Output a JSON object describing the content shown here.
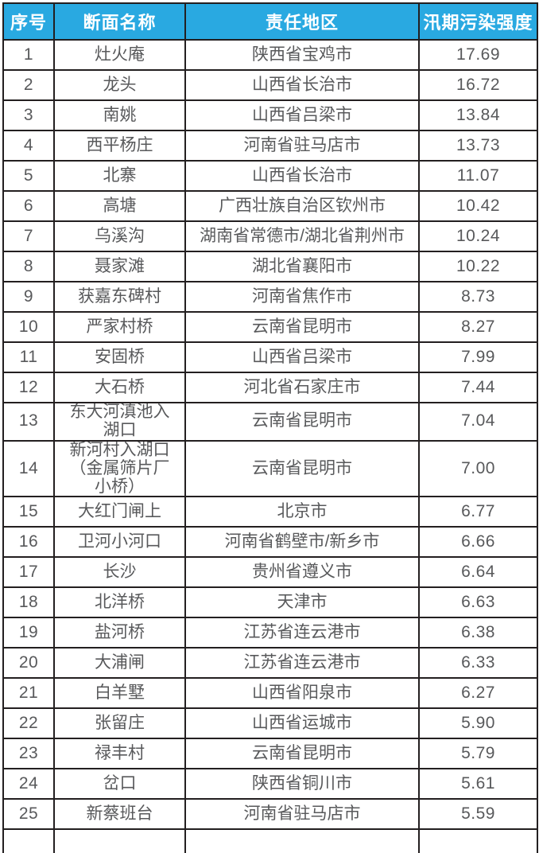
{
  "colors": {
    "header_bg": "#29a9e1",
    "header_text": "#ffffff",
    "body_text": "#58595b",
    "border": "#231f20"
  },
  "table": {
    "headers": {
      "no": "序号",
      "name": "断面名称",
      "region": "责任地区",
      "value": "汛期污染强度"
    },
    "rows": [
      {
        "no": "1",
        "name": "灶火庵",
        "region": "陕西省宝鸡市",
        "value": "17.69"
      },
      {
        "no": "2",
        "name": "龙头",
        "region": "山西省长治市",
        "value": "16.72"
      },
      {
        "no": "3",
        "name": "南姚",
        "region": "山西省吕梁市",
        "value": "13.84"
      },
      {
        "no": "4",
        "name": "西平杨庄",
        "region": "河南省驻马店市",
        "value": "13.73"
      },
      {
        "no": "5",
        "name": "北寨",
        "region": "山西省长治市",
        "value": "11.07"
      },
      {
        "no": "6",
        "name": "高塘",
        "region": "广西壮族自治区钦州市",
        "value": "10.42"
      },
      {
        "no": "7",
        "name": "乌溪沟",
        "region": "湖南省常德市/湖北省荆州市",
        "value": "10.24"
      },
      {
        "no": "8",
        "name": "聂家滩",
        "region": "湖北省襄阳市",
        "value": "10.22"
      },
      {
        "no": "9",
        "name": "获嘉东碑村",
        "region": "河南省焦作市",
        "value": "8.73"
      },
      {
        "no": "10",
        "name": "严家村桥",
        "region": "云南省昆明市",
        "value": "8.27"
      },
      {
        "no": "11",
        "name": "安固桥",
        "region": "山西省吕梁市",
        "value": "7.99"
      },
      {
        "no": "12",
        "name": "大石桥",
        "region": "河北省石家庄市",
        "value": "7.44"
      },
      {
        "no": "13",
        "name": "东大河滇池入\n湖口",
        "region": "云南省昆明市",
        "value": "7.04"
      },
      {
        "no": "14",
        "name": "新河村入湖口\n（金属筛片厂\n小桥）",
        "region": "云南省昆明市",
        "value": "7.00"
      },
      {
        "no": "15",
        "name": "大红门闸上",
        "region": "北京市",
        "value": "6.77"
      },
      {
        "no": "16",
        "name": "卫河小河口",
        "region": "河南省鹤壁市/新乡市",
        "value": "6.66"
      },
      {
        "no": "17",
        "name": "长沙",
        "region": "贵州省遵义市",
        "value": "6.64"
      },
      {
        "no": "18",
        "name": "北洋桥",
        "region": "天津市",
        "value": "6.63"
      },
      {
        "no": "19",
        "name": "盐河桥",
        "region": "江苏省连云港市",
        "value": "6.38"
      },
      {
        "no": "20",
        "name": "大浦闸",
        "region": "江苏省连云港市",
        "value": "6.33"
      },
      {
        "no": "21",
        "name": "白羊墅",
        "region": "山西省阳泉市",
        "value": "6.27"
      },
      {
        "no": "22",
        "name": "张留庄",
        "region": "山西省运城市",
        "value": "5.90"
      },
      {
        "no": "23",
        "name": "禄丰村",
        "region": "云南省昆明市",
        "value": "5.79"
      },
      {
        "no": "24",
        "name": "岔口",
        "region": "陕西省铜川市",
        "value": "5.61"
      },
      {
        "no": "25",
        "name": "新蔡班台",
        "region": "河南省驻马店市",
        "value": "5.59"
      },
      {
        "no": "",
        "name": "",
        "region": "",
        "value": ""
      }
    ]
  }
}
